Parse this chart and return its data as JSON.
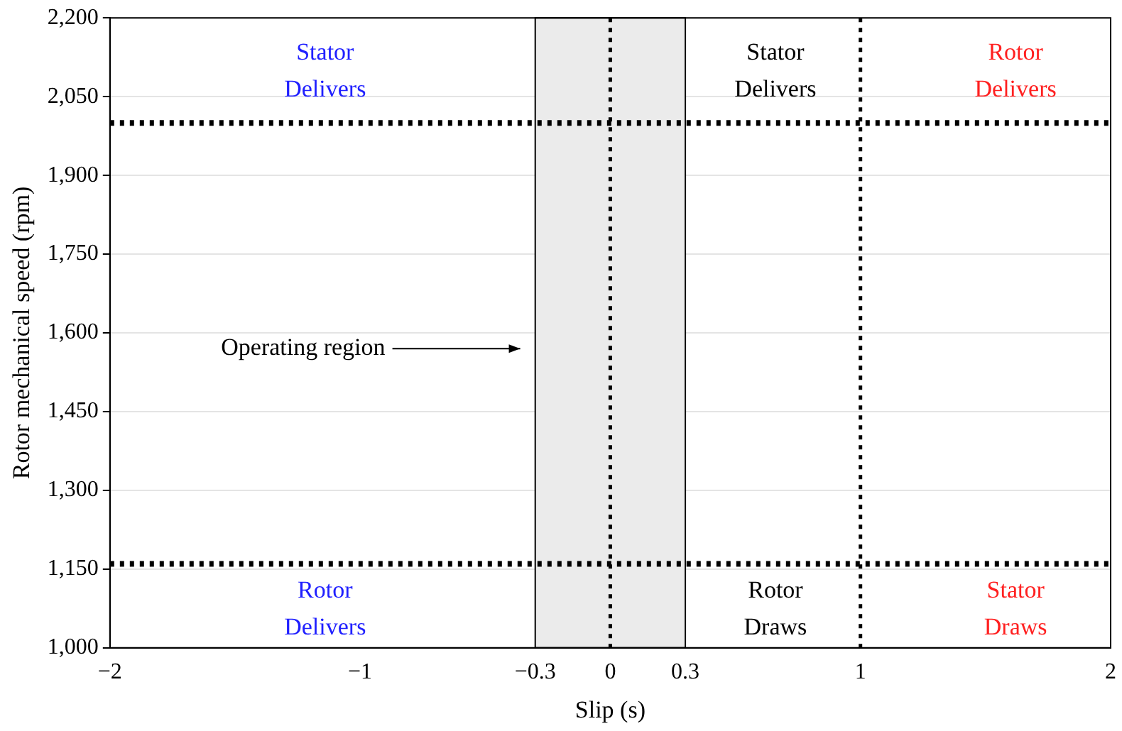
{
  "chart_data": {
    "type": "line",
    "xlabel": "Slip (s)",
    "ylabel": "Rotor mechanical speed (rpm)",
    "xlim": [
      -2,
      2
    ],
    "ylim": [
      1000,
      2200
    ],
    "xticks": [
      {
        "value": -2,
        "label": "−2"
      },
      {
        "value": -1,
        "label": "−1"
      },
      {
        "value": -0.3,
        "label": "−0.3"
      },
      0,
      0.3,
      1,
      2
    ],
    "yticks": [
      {
        "value": 1000,
        "label": "1,000"
      },
      {
        "value": 1150,
        "label": "1,150"
      },
      {
        "value": 1300,
        "label": "1,300"
      },
      {
        "value": 1450,
        "label": "1,450"
      },
      {
        "value": 1600,
        "label": "1,600"
      },
      {
        "value": 1750,
        "label": "1,750"
      },
      {
        "value": 1900,
        "label": "1,900"
      },
      {
        "value": 2050,
        "label": "2,050"
      },
      {
        "value": 2200,
        "label": "2,200"
      }
    ],
    "grid": "y",
    "legend": false,
    "bands": [
      {
        "axis": "x",
        "from": -0.3,
        "to": 0.3,
        "color": "#ebebeb"
      }
    ],
    "ref_lines": [
      {
        "axis": "y",
        "value": 2000,
        "color": "#000000",
        "line_style": "dotted"
      },
      {
        "axis": "y",
        "value": 1160,
        "color": "#000000",
        "line_style": "dotted"
      },
      {
        "axis": "x",
        "value": 0,
        "color": "#000000",
        "line_style": "dotted"
      },
      {
        "axis": "x",
        "value": 1,
        "color": "#000000",
        "line_style": "dotted"
      }
    ],
    "annotations": [
      "Stator Delivers",
      "Rotor Delivers",
      "Stator Delivers",
      "Rotor Draws",
      "Rotor Delivers",
      "Stator Draws",
      "Operating region"
    ]
  }
}
